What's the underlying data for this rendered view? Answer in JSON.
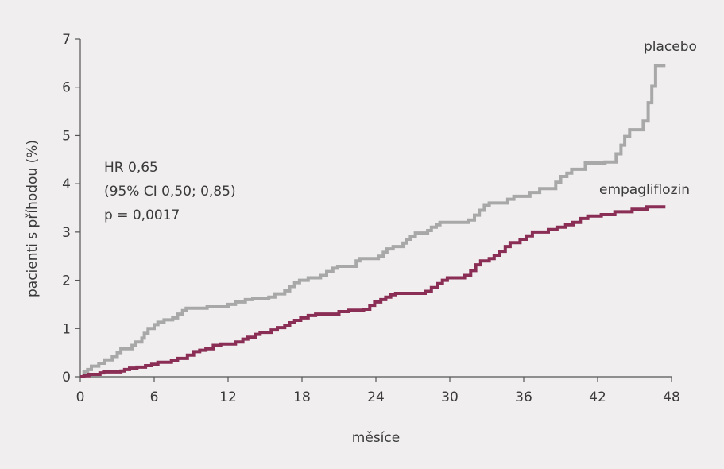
{
  "chart_data": {
    "type": "line",
    "step": true,
    "xlabel": "měsíce",
    "ylabel": "pacienti s příhodou (%)",
    "xlim": [
      0,
      48
    ],
    "ylim": [
      0,
      7
    ],
    "x_ticks": [
      0,
      6,
      12,
      18,
      24,
      30,
      36,
      42,
      48
    ],
    "y_ticks": [
      0,
      1,
      2,
      3,
      4,
      5,
      6,
      7
    ],
    "grid": false,
    "annotation": [
      "HR 0,65",
      "(95% CI 0,50; 0,85)",
      "p = 0,0017"
    ],
    "series": [
      {
        "name": "placebo",
        "color": "#a8a8a8",
        "points": [
          [
            0,
            0
          ],
          [
            0.3,
            0.1
          ],
          [
            0.6,
            0.15
          ],
          [
            0.9,
            0.22
          ],
          [
            1.5,
            0.28
          ],
          [
            2.0,
            0.35
          ],
          [
            2.6,
            0.42
          ],
          [
            3.0,
            0.5
          ],
          [
            3.3,
            0.58
          ],
          [
            4.2,
            0.65
          ],
          [
            4.5,
            0.72
          ],
          [
            5.0,
            0.8
          ],
          [
            5.2,
            0.9
          ],
          [
            5.5,
            1.0
          ],
          [
            6.0,
            1.08
          ],
          [
            6.3,
            1.13
          ],
          [
            6.8,
            1.18
          ],
          [
            7.5,
            1.22
          ],
          [
            7.9,
            1.3
          ],
          [
            8.3,
            1.37
          ],
          [
            8.6,
            1.42
          ],
          [
            10.3,
            1.45
          ],
          [
            12.0,
            1.5
          ],
          [
            12.6,
            1.55
          ],
          [
            13.4,
            1.6
          ],
          [
            14.0,
            1.62
          ],
          [
            15.3,
            1.65
          ],
          [
            15.8,
            1.72
          ],
          [
            16.6,
            1.78
          ],
          [
            17.0,
            1.87
          ],
          [
            17.4,
            1.95
          ],
          [
            17.8,
            2.0
          ],
          [
            18.5,
            2.05
          ],
          [
            19.5,
            2.1
          ],
          [
            20.0,
            2.18
          ],
          [
            20.5,
            2.25
          ],
          [
            20.9,
            2.29
          ],
          [
            22.4,
            2.4
          ],
          [
            22.7,
            2.45
          ],
          [
            24.2,
            2.5
          ],
          [
            24.6,
            2.58
          ],
          [
            24.9,
            2.65
          ],
          [
            25.4,
            2.7
          ],
          [
            26.2,
            2.77
          ],
          [
            26.5,
            2.85
          ],
          [
            26.8,
            2.9
          ],
          [
            27.2,
            2.98
          ],
          [
            28.2,
            3.03
          ],
          [
            28.5,
            3.1
          ],
          [
            28.9,
            3.15
          ],
          [
            29.2,
            3.2
          ],
          [
            31.5,
            3.25
          ],
          [
            32.0,
            3.35
          ],
          [
            32.4,
            3.45
          ],
          [
            32.8,
            3.55
          ],
          [
            33.2,
            3.6
          ],
          [
            34.7,
            3.68
          ],
          [
            35.2,
            3.74
          ],
          [
            36.5,
            3.82
          ],
          [
            37.3,
            3.9
          ],
          [
            38.6,
            4.03
          ],
          [
            39.0,
            4.15
          ],
          [
            39.5,
            4.22
          ],
          [
            39.9,
            4.3
          ],
          [
            41.0,
            4.43
          ],
          [
            42.6,
            4.45
          ],
          [
            43.5,
            4.62
          ],
          [
            43.9,
            4.8
          ],
          [
            44.2,
            4.98
          ],
          [
            44.6,
            5.12
          ],
          [
            45.7,
            5.3
          ],
          [
            46.1,
            5.68
          ],
          [
            46.4,
            6.02
          ],
          [
            46.7,
            6.45
          ],
          [
            47.5,
            6.45
          ]
        ]
      },
      {
        "name": "empagliflozin",
        "color": "#8a2e56",
        "points": [
          [
            0,
            0
          ],
          [
            0.3,
            0.02
          ],
          [
            0.7,
            0.05
          ],
          [
            1.6,
            0.08
          ],
          [
            1.9,
            0.1
          ],
          [
            3.3,
            0.12
          ],
          [
            3.6,
            0.15
          ],
          [
            4.0,
            0.18
          ],
          [
            4.6,
            0.2
          ],
          [
            5.3,
            0.23
          ],
          [
            5.8,
            0.26
          ],
          [
            6.3,
            0.3
          ],
          [
            7.4,
            0.34
          ],
          [
            7.9,
            0.38
          ],
          [
            8.7,
            0.45
          ],
          [
            9.2,
            0.52
          ],
          [
            9.7,
            0.55
          ],
          [
            10.2,
            0.58
          ],
          [
            10.8,
            0.65
          ],
          [
            11.4,
            0.68
          ],
          [
            12.6,
            0.72
          ],
          [
            13.2,
            0.78
          ],
          [
            13.6,
            0.82
          ],
          [
            14.2,
            0.88
          ],
          [
            14.6,
            0.92
          ],
          [
            15.5,
            0.97
          ],
          [
            16.0,
            1.02
          ],
          [
            16.6,
            1.07
          ],
          [
            17.0,
            1.12
          ],
          [
            17.4,
            1.17
          ],
          [
            17.9,
            1.22
          ],
          [
            18.5,
            1.27
          ],
          [
            19.1,
            1.3
          ],
          [
            21.0,
            1.35
          ],
          [
            21.8,
            1.38
          ],
          [
            23.0,
            1.4
          ],
          [
            23.5,
            1.48
          ],
          [
            23.9,
            1.55
          ],
          [
            24.4,
            1.6
          ],
          [
            24.8,
            1.65
          ],
          [
            25.2,
            1.7
          ],
          [
            25.6,
            1.73
          ],
          [
            28.0,
            1.77
          ],
          [
            28.5,
            1.85
          ],
          [
            29.0,
            1.93
          ],
          [
            29.4,
            2.0
          ],
          [
            29.8,
            2.05
          ],
          [
            31.2,
            2.1
          ],
          [
            31.7,
            2.2
          ],
          [
            32.1,
            2.32
          ],
          [
            32.5,
            2.4
          ],
          [
            33.2,
            2.45
          ],
          [
            33.6,
            2.52
          ],
          [
            34.0,
            2.6
          ],
          [
            34.5,
            2.7
          ],
          [
            34.9,
            2.78
          ],
          [
            35.7,
            2.85
          ],
          [
            36.2,
            2.92
          ],
          [
            36.7,
            3.0
          ],
          [
            38.0,
            3.05
          ],
          [
            38.7,
            3.1
          ],
          [
            39.4,
            3.15
          ],
          [
            40.0,
            3.2
          ],
          [
            40.6,
            3.28
          ],
          [
            41.2,
            3.33
          ],
          [
            42.3,
            3.36
          ],
          [
            43.4,
            3.42
          ],
          [
            44.8,
            3.47
          ],
          [
            46.0,
            3.52
          ],
          [
            47.5,
            3.52
          ]
        ]
      }
    ]
  }
}
